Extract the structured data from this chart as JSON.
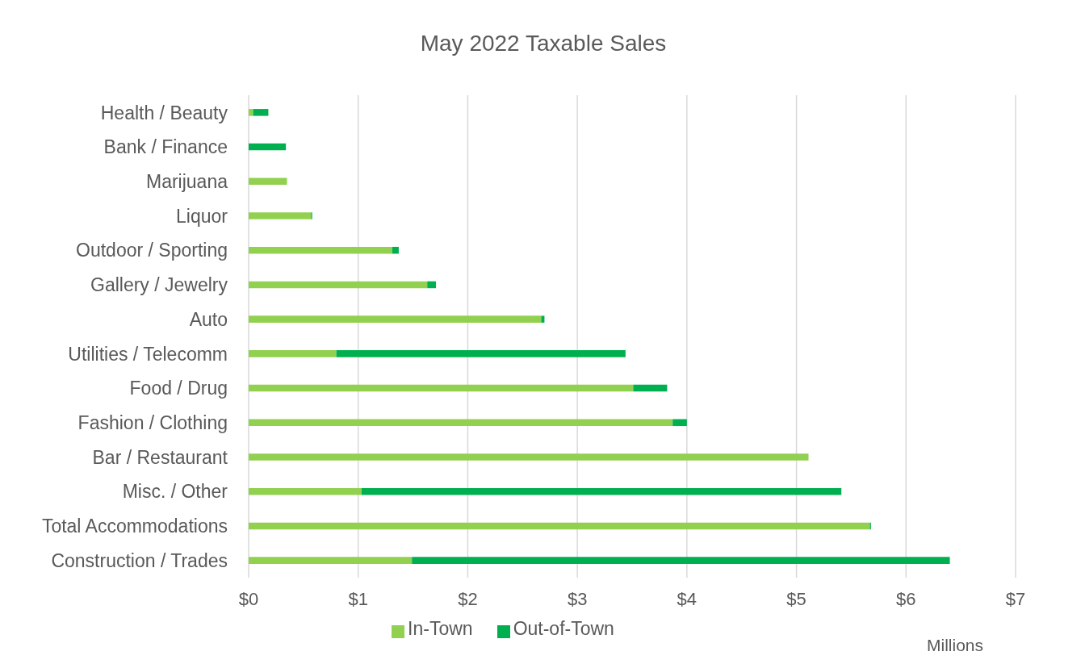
{
  "chart_data": {
    "type": "bar",
    "orientation": "horizontal",
    "stacked": true,
    "title": "May 2022 Taxable Sales",
    "xlabel": "Millions",
    "categories": [
      "Health / Beauty",
      "Bank / Finance",
      "Marijuana",
      "Liquor",
      "Outdoor / Sporting",
      "Gallery / Jewelry",
      "Auto",
      "Utilities / Telecomm",
      "Food / Drug",
      "Fashion / Clothing",
      "Bar / Restaurant",
      "Misc. / Other",
      "Total Accommodations",
      "Construction / Trades"
    ],
    "series": [
      {
        "name": "In-Town",
        "color": "#92d050",
        "values": [
          0.04,
          0,
          0.35,
          0.57,
          1.31,
          1.63,
          2.67,
          0.8,
          3.51,
          3.87,
          5.11,
          1.03,
          5.67,
          1.49
        ]
      },
      {
        "name": "Out-of-Town",
        "color": "#00b050",
        "values": [
          0.14,
          0.34,
          0,
          0.01,
          0.06,
          0.08,
          0.03,
          2.64,
          0.31,
          0.13,
          0,
          4.38,
          0.01,
          4.91
        ]
      }
    ],
    "xlim": [
      0,
      7
    ],
    "xticks": [
      {
        "value": 0,
        "label": "$0"
      },
      {
        "value": 1,
        "label": "$1"
      },
      {
        "value": 2,
        "label": "$2"
      },
      {
        "value": 3,
        "label": "$3"
      },
      {
        "value": 4,
        "label": "$4"
      },
      {
        "value": 5,
        "label": "$5"
      },
      {
        "value": 6,
        "label": "$6"
      },
      {
        "value": 7,
        "label": "$7"
      }
    ],
    "grid": "x",
    "legend": "bottom"
  }
}
